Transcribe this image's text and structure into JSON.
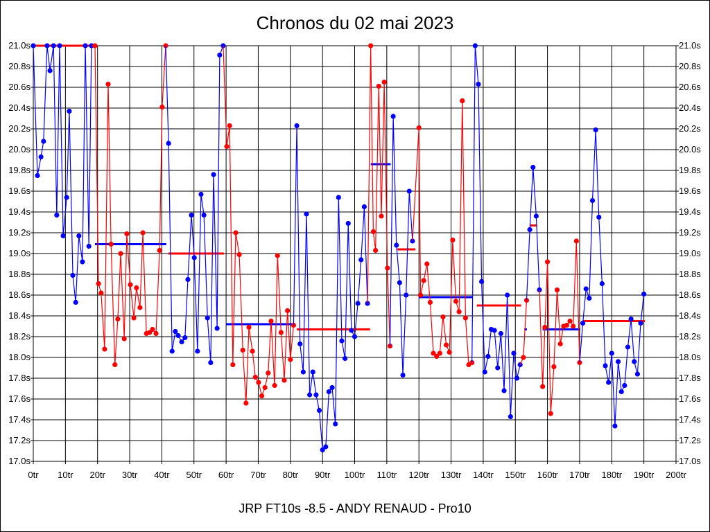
{
  "chart_data": {
    "type": "line",
    "title": "Chronos du 02 mai 2023",
    "xlabel": "JRP FT10s -8.5 - ANDY RENAUD - Pro10",
    "ylabel": "",
    "xlim": [
      0,
      200
    ],
    "ylim": [
      17.0,
      21.0
    ],
    "grid": true,
    "x_ticks": [
      "0tr",
      "10tr",
      "20tr",
      "30tr",
      "40tr",
      "50tr",
      "60tr",
      "70tr",
      "80tr",
      "90tr",
      "100tr",
      "110tr",
      "120tr",
      "130tr",
      "140tr",
      "150tr",
      "160tr",
      "170tr",
      "180tr",
      "190tr",
      "200tr"
    ],
    "y_ticks": [
      "17.0s",
      "17.2s",
      "17.4s",
      "17.6s",
      "17.8s",
      "18.0s",
      "18.2s",
      "18.4s",
      "18.6s",
      "18.8s",
      "19.0s",
      "19.2s",
      "19.4s",
      "19.6s",
      "19.8s",
      "20.0s",
      "20.2s",
      "20.4s",
      "20.6s",
      "20.8s",
      "21.0s"
    ],
    "colors": {
      "blue": "#0000ff",
      "red": "#ff0000",
      "grid": "#000000"
    },
    "segments": [
      {
        "color": "blue",
        "points": [
          [
            0,
            21.0
          ],
          [
            1.3,
            19.75
          ],
          [
            2.4,
            19.93
          ],
          [
            3.2,
            20.08
          ],
          [
            4.3,
            21.0
          ],
          [
            5.2,
            20.76
          ],
          [
            6.3,
            21.0
          ],
          [
            7.3,
            19.37
          ],
          [
            8.2,
            21.0
          ],
          [
            9.3,
            19.17
          ],
          [
            10.4,
            19.54
          ],
          [
            11.2,
            20.37
          ],
          [
            12.3,
            18.79
          ],
          [
            13.2,
            18.53
          ],
          [
            14.2,
            19.17
          ],
          [
            15.3,
            18.92
          ],
          [
            16.2,
            21.0
          ],
          [
            17.3,
            19.07
          ],
          [
            18.1,
            21.0
          ]
        ]
      },
      {
        "color": "red",
        "points": [
          [
            19.2,
            21.0
          ],
          [
            20.3,
            18.71
          ],
          [
            21.1,
            18.62
          ],
          [
            22.2,
            18.08
          ],
          [
            23.3,
            20.63
          ],
          [
            24.2,
            19.09
          ],
          [
            25.4,
            17.93
          ],
          [
            26.3,
            18.37
          ],
          [
            27.2,
            19.0
          ],
          [
            28.3,
            18.18
          ],
          [
            29.1,
            19.19
          ],
          [
            30.2,
            18.7
          ],
          [
            31.3,
            18.38
          ],
          [
            32.1,
            18.67
          ],
          [
            33.2,
            18.48
          ],
          [
            34.1,
            19.2
          ],
          [
            35.2,
            18.23
          ],
          [
            36.2,
            18.24
          ],
          [
            37.1,
            18.27
          ],
          [
            38.2,
            18.23
          ],
          [
            39.3,
            19.03
          ],
          [
            40.1,
            20.41
          ],
          [
            41.2,
            21.0
          ]
        ]
      },
      {
        "color": "blue",
        "points": [
          [
            42.1,
            20.06
          ],
          [
            43.2,
            18.06
          ],
          [
            44.2,
            18.25
          ],
          [
            45.1,
            18.21
          ],
          [
            46.2,
            18.15
          ],
          [
            47.2,
            18.19
          ],
          [
            48.1,
            18.75
          ],
          [
            49.2,
            19.37
          ],
          [
            50.1,
            18.96
          ],
          [
            51.1,
            18.06
          ],
          [
            52.2,
            19.57
          ],
          [
            53.1,
            19.37
          ],
          [
            54.2,
            18.38
          ],
          [
            55.2,
            17.95
          ],
          [
            56.1,
            19.76
          ],
          [
            57.2,
            18.28
          ],
          [
            58.0,
            20.91
          ],
          [
            59.1,
            21.0
          ]
        ]
      },
      {
        "color": "red",
        "points": [
          [
            60.2,
            20.03
          ],
          [
            61.1,
            20.23
          ],
          [
            62.1,
            17.93
          ],
          [
            63.0,
            19.2
          ],
          [
            64.1,
            18.99
          ],
          [
            65.2,
            18.07
          ],
          [
            66.2,
            17.56
          ],
          [
            67.1,
            18.29
          ],
          [
            68.2,
            18.06
          ],
          [
            69.1,
            17.81
          ],
          [
            70.1,
            17.76
          ],
          [
            71.1,
            17.63
          ],
          [
            72.1,
            17.71
          ],
          [
            73.1,
            17.85
          ],
          [
            74.0,
            18.35
          ],
          [
            75.1,
            17.73
          ],
          [
            76.0,
            18.98
          ],
          [
            77.1,
            18.24
          ],
          [
            78.1,
            17.78
          ],
          [
            79.1,
            18.45
          ],
          [
            80.0,
            17.98
          ],
          [
            81.0,
            18.31
          ]
        ]
      },
      {
        "color": "blue",
        "points": [
          [
            82.0,
            20.23
          ],
          [
            83.0,
            18.13
          ],
          [
            84.0,
            17.86
          ],
          [
            85.0,
            19.38
          ],
          [
            86.0,
            17.64
          ],
          [
            87.0,
            17.86
          ],
          [
            88.0,
            17.64
          ],
          [
            89.0,
            17.49
          ],
          [
            90.0,
            17.11
          ],
          [
            91.0,
            17.14
          ],
          [
            92.0,
            17.67
          ],
          [
            93.0,
            17.71
          ],
          [
            94.0,
            17.36
          ],
          [
            95.0,
            19.54
          ],
          [
            96.0,
            18.16
          ],
          [
            97.0,
            17.99
          ],
          [
            98.0,
            19.29
          ],
          [
            99.0,
            18.26
          ],
          [
            100.0,
            18.2
          ],
          [
            101.0,
            18.52
          ],
          [
            102.0,
            18.94
          ],
          [
            103.0,
            19.45
          ],
          [
            104.0,
            18.52
          ]
        ]
      },
      {
        "color": "red",
        "points": [
          [
            105.0,
            21.0
          ],
          [
            105.8,
            19.21
          ],
          [
            106.5,
            19.03
          ],
          [
            107.5,
            20.61
          ],
          [
            108.3,
            19.36
          ],
          [
            109.2,
            20.65
          ],
          [
            110.2,
            18.86
          ],
          [
            111.0,
            18.11
          ]
        ]
      },
      {
        "color": "blue",
        "points": [
          [
            112.0,
            20.32
          ],
          [
            113.0,
            19.08
          ],
          [
            114.0,
            18.72
          ],
          [
            115.0,
            17.83
          ],
          [
            116.0,
            18.6
          ],
          [
            117.0,
            19.6
          ],
          [
            118.0,
            19.12
          ]
        ]
      },
      {
        "color": "red",
        "points": [
          [
            120.0,
            20.21
          ],
          [
            120.5,
            18.6
          ],
          [
            121.5,
            18.74
          ],
          [
            122.5,
            18.9
          ],
          [
            123.5,
            18.53
          ],
          [
            124.5,
            18.04
          ],
          [
            125.5,
            18.01
          ],
          [
            126.5,
            18.04
          ],
          [
            127.5,
            18.39
          ],
          [
            128.5,
            18.12
          ],
          [
            129.5,
            18.05
          ],
          [
            130.5,
            19.13
          ],
          [
            131.5,
            18.54
          ],
          [
            132.5,
            18.44
          ],
          [
            133.5,
            20.47
          ],
          [
            134.5,
            18.38
          ],
          [
            135.5,
            17.93
          ],
          [
            136.5,
            17.95
          ]
        ]
      },
      {
        "color": "blue",
        "points": [
          [
            137.5,
            21.0
          ],
          [
            138.5,
            20.63
          ],
          [
            139.5,
            18.73
          ],
          [
            140.5,
            17.86
          ],
          [
            141.5,
            18.01
          ],
          [
            142.5,
            18.27
          ],
          [
            143.5,
            18.26
          ],
          [
            144.5,
            17.9
          ],
          [
            145.5,
            18.23
          ],
          [
            146.5,
            17.68
          ],
          [
            147.5,
            18.6
          ],
          [
            148.5,
            17.43
          ],
          [
            149.5,
            18.04
          ],
          [
            150.5,
            17.8
          ],
          [
            151.5,
            17.93
          ]
        ]
      },
      {
        "color": "red",
        "points": [
          [
            152.5,
            18.0
          ],
          [
            153.5,
            18.55
          ]
        ]
      },
      {
        "color": "blue",
        "points": [
          [
            154.5,
            19.23
          ],
          [
            155.5,
            19.83
          ],
          [
            156.5,
            19.36
          ],
          [
            157.5,
            18.65
          ]
        ]
      },
      {
        "color": "red",
        "points": [
          [
            158.5,
            17.72
          ],
          [
            159.2,
            18.29
          ],
          [
            160.0,
            18.92
          ],
          [
            161.0,
            17.46
          ],
          [
            162.0,
            17.91
          ],
          [
            163.0,
            18.65
          ],
          [
            164.0,
            18.13
          ],
          [
            165.0,
            18.3
          ],
          [
            166.0,
            18.31
          ],
          [
            167.0,
            18.35
          ],
          [
            168.0,
            18.3
          ],
          [
            169.0,
            19.12
          ],
          [
            170.0,
            17.95
          ]
        ]
      },
      {
        "color": "blue",
        "points": [
          [
            171.0,
            18.33
          ],
          [
            172.0,
            18.66
          ],
          [
            173.0,
            18.57
          ],
          [
            174.0,
            19.51
          ],
          [
            175.0,
            20.19
          ],
          [
            176.0,
            19.35
          ],
          [
            177.0,
            18.71
          ],
          [
            178.0,
            17.92
          ],
          [
            179.0,
            17.76
          ],
          [
            180.0,
            18.04
          ],
          [
            181.0,
            17.34
          ],
          [
            182.0,
            17.96
          ],
          [
            183.0,
            17.67
          ],
          [
            184.0,
            17.73
          ],
          [
            185.0,
            18.1
          ],
          [
            186.0,
            18.37
          ],
          [
            187.0,
            17.96
          ],
          [
            188.0,
            17.84
          ],
          [
            189.0,
            18.33
          ],
          [
            190.0,
            18.61
          ]
        ]
      }
    ],
    "averages": [
      {
        "color": "red",
        "x": [
          0,
          19.2
        ],
        "value": 21.0
      },
      {
        "color": "blue",
        "x": [
          19.2,
          41.4
        ],
        "value": 19.09
      },
      {
        "color": "red",
        "x": [
          42.0,
          59.3
        ],
        "value": 19.0
      },
      {
        "color": "blue",
        "x": [
          60.0,
          81.2
        ],
        "value": 18.32
      },
      {
        "color": "red",
        "x": [
          82.0,
          104.8
        ],
        "value": 18.27
      },
      {
        "color": "blue",
        "x": [
          105.0,
          111.2
        ],
        "value": 19.86
      },
      {
        "color": "red",
        "x": [
          113.3,
          118.9
        ],
        "value": 19.04
      },
      {
        "color": "blue",
        "x": [
          120.0,
          136.8
        ],
        "value": 18.58
      },
      {
        "color": "red",
        "x": [
          138.0,
          151.8
        ],
        "value": 18.5
      },
      {
        "color": "blue",
        "x": [
          152.8,
          153.6
        ],
        "value": 18.27
      },
      {
        "color": "red",
        "x": [
          154.5,
          156.8
        ],
        "value": 19.27
      },
      {
        "color": "blue",
        "x": [
          158.5,
          170.2
        ],
        "value": 18.27
      },
      {
        "color": "red",
        "x": [
          171.0,
          190.3
        ],
        "value": 18.35
      }
    ]
  }
}
